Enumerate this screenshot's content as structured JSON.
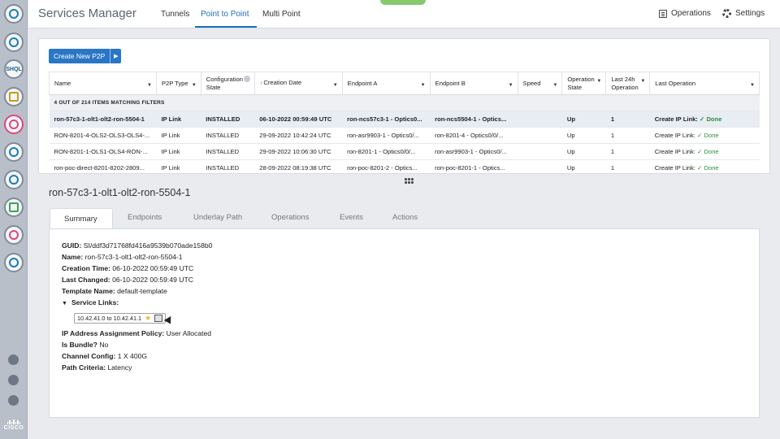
{
  "header": {
    "title": "Services Manager",
    "tabs": [
      {
        "label": "Tunnels"
      },
      {
        "label": "Point to Point"
      },
      {
        "label": "Multi Point"
      }
    ],
    "operations_label": "Operations",
    "settings_label": "Settings"
  },
  "sidebar": {
    "shql_label": "SHQL",
    "brand": "CISCO"
  },
  "toolbar": {
    "create_label": "Create New P2P"
  },
  "table": {
    "columns": [
      "Name",
      "P2P Type",
      "Configuration State",
      "Creation Date",
      "Endpoint A",
      "Endpoint B",
      "Speed",
      "Operation State",
      "Last 24h Operation",
      "Last Operation"
    ],
    "filter_text": "4 OUT OF 214 ITEMS MATCHING FILTERS",
    "rows": [
      {
        "name": "ron-57c3-1-olt1-olt2-ron-5504-1",
        "type": "IP Link",
        "config_state": "INSTALLED",
        "created": "06-10-2022 00:59:49 UTC",
        "endpoint_a": "ron-ncs57c3-1 - Optics0...",
        "endpoint_b": "ron-ncs5504-1 - Optics...",
        "speed": "",
        "op_state": "Up",
        "last24": "1",
        "last_op": "Create IP Link:",
        "last_op_status": "✓ Done"
      },
      {
        "name": "RON-8201-4-OLS2-OLS3-OLS4-...",
        "type": "IP Link",
        "config_state": "INSTALLED",
        "created": "29-09-2022 10:42:24 UTC",
        "endpoint_a": "ron-asr9903-1 - Optics0/...",
        "endpoint_b": "ron-8201-4 - Optics0/0/...",
        "speed": "",
        "op_state": "Up",
        "last24": "1",
        "last_op": "Create IP Link:",
        "last_op_status": "✓ Done"
      },
      {
        "name": "RON-8201-1-OLS1-OLS4-RON-...",
        "type": "IP Link",
        "config_state": "INSTALLED",
        "created": "29-09-2022 10:06:30 UTC",
        "endpoint_a": "ron-8201-1 - Optics0/0/...",
        "endpoint_b": "ron-asr9903-1 - Optics0/...",
        "speed": "",
        "op_state": "Up",
        "last24": "1",
        "last_op": "Create IP Link:",
        "last_op_status": "✓ Done"
      },
      {
        "name": "ron-poc-direct-8201-8202-2809...",
        "type": "IP Link",
        "config_state": "INSTALLED",
        "created": "28-09-2022 08:19:38 UTC",
        "endpoint_a": "ron-poc-8201-2 - Optics...",
        "endpoint_b": "ron-poc-8201-1 - Optics...",
        "speed": "",
        "op_state": "Up",
        "last24": "1",
        "last_op": "Create IP Link:",
        "last_op_status": "✓ Done"
      }
    ]
  },
  "detail": {
    "title": "ron-57c3-1-olt1-olt2-ron-5504-1",
    "tabs": [
      "Summary",
      "Endpoints",
      "Underlay Path",
      "Operations",
      "Events",
      "Actions"
    ],
    "fields": [
      {
        "label": "GUID:",
        "value": "SI/ddf3d71768fd416a9539b070ade158b0"
      },
      {
        "label": "Name:",
        "value": "ron-57c3-1-olt1-olt2-ron-5504-1"
      },
      {
        "label": "Creation Time:",
        "value": "06-10-2022 00:59:49 UTC"
      },
      {
        "label": "Last Changed:",
        "value": "06-10-2022 00:59:49 UTC"
      },
      {
        "label": "Template Name:",
        "value": "default-template"
      }
    ],
    "service_links_label": "Service Links:",
    "service_link_chip": "10.42.41.0 to 10.42.41.1",
    "fields_after": [
      {
        "label": "IP Address Assignment Policy:",
        "value": "User Allocated"
      },
      {
        "label": "Is Bundle?",
        "value": "No"
      },
      {
        "label": "Channel Config:",
        "value": "1 X 400G"
      },
      {
        "label": "Path Criteria:",
        "value": "Latency"
      }
    ]
  },
  "colors": {
    "accent": "#1e6fbd",
    "button": "#2a76c6",
    "success": "#2e8b3a",
    "sidebar": "#b9bfc8"
  }
}
